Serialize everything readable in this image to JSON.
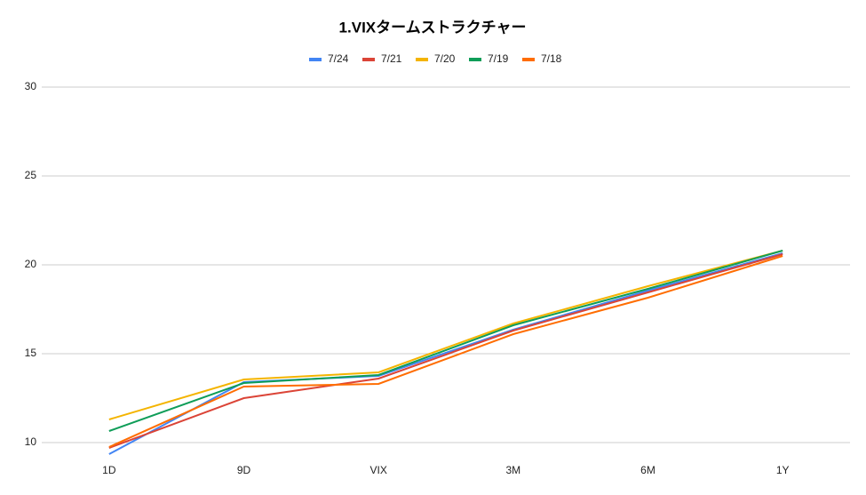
{
  "chart_data": {
    "type": "line",
    "title": "1.VIXタームストラクチャー",
    "categories": [
      "1D",
      "9D",
      "VIX",
      "3M",
      "6M",
      "1Y"
    ],
    "series": [
      {
        "name": "7/24",
        "color": "#4285f4",
        "values": [
          9.35,
          13.4,
          13.75,
          16.35,
          18.55,
          20.65
        ]
      },
      {
        "name": "7/21",
        "color": "#db4437",
        "values": [
          9.7,
          12.5,
          13.6,
          16.3,
          18.45,
          20.6
        ]
      },
      {
        "name": "7/20",
        "color": "#f4b400",
        "values": [
          11.3,
          13.55,
          13.95,
          16.7,
          18.8,
          20.8
        ]
      },
      {
        "name": "7/19",
        "color": "#0f9d58",
        "values": [
          10.65,
          13.35,
          13.8,
          16.6,
          18.65,
          20.8
        ]
      },
      {
        "name": "7/18",
        "color": "#ff6d01",
        "values": [
          9.75,
          13.15,
          13.3,
          16.1,
          18.15,
          20.5
        ]
      }
    ],
    "ylim": [
      9,
      30
    ],
    "yticks": [
      10,
      15,
      20,
      25,
      30
    ],
    "grid": true,
    "legend": "top"
  }
}
